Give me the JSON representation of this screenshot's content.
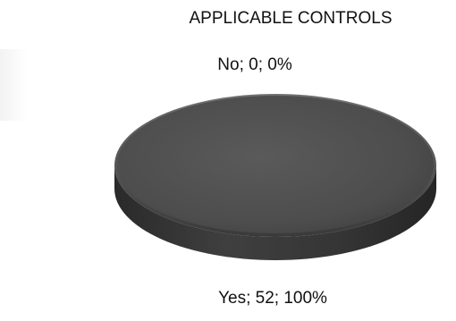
{
  "chart_data": {
    "type": "pie",
    "title": "APPLICABLE CONTROLS",
    "slices": [
      {
        "label": "No",
        "value": 0,
        "percent": "0%",
        "data_label": "No; 0; 0%"
      },
      {
        "label": "Yes",
        "value": 52,
        "percent": "100%",
        "data_label": "Yes; 52; 100%"
      }
    ],
    "style": "3d",
    "legend": "none",
    "colors": {
      "slice": "#4d4d4d",
      "edge": "#333333"
    }
  }
}
